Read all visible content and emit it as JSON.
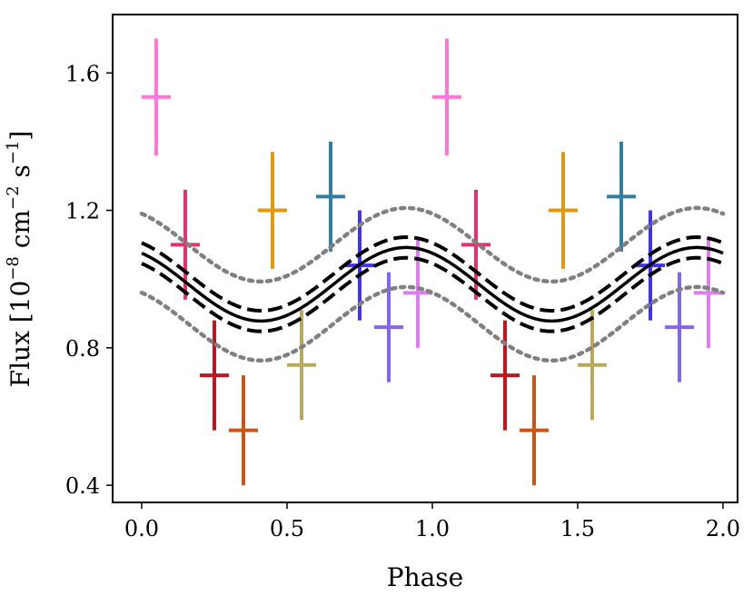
{
  "chart_data": {
    "type": "scatter",
    "title": "",
    "xlabel": "Phase",
    "ylabel": {
      "prefix": "Flux [10",
      "exp1": "−8",
      "mid": " cm",
      "exp2": "−2",
      "mid2": " s",
      "exp3": "−1",
      "suffix": "]"
    },
    "xlim": [
      -0.1,
      2.05
    ],
    "ylim": [
      0.35,
      1.77
    ],
    "x_ticks": [
      {
        "value": 0.0,
        "label": "0.0"
      },
      {
        "value": 0.5,
        "label": "0.5"
      },
      {
        "value": 1.0,
        "label": "1.0"
      },
      {
        "value": 1.5,
        "label": "1.5"
      },
      {
        "value": 2.0,
        "label": "2.0"
      }
    ],
    "y_ticks": [
      {
        "value": 0.4,
        "label": "0.4"
      },
      {
        "value": 0.8,
        "label": "0.8"
      },
      {
        "value": 1.2,
        "label": "1.2"
      },
      {
        "value": 1.6,
        "label": "1.6"
      }
    ],
    "points": [
      {
        "x": 0.05,
        "y": 1.53,
        "err": 0.17,
        "color": "#ff77d6"
      },
      {
        "x": 0.15,
        "y": 1.1,
        "err": 0.16,
        "color": "#e2336f"
      },
      {
        "x": 0.25,
        "y": 0.72,
        "err": 0.16,
        "color": "#c0161c"
      },
      {
        "x": 0.35,
        "y": 0.56,
        "err": 0.16,
        "color": "#cc5415"
      },
      {
        "x": 0.45,
        "y": 1.2,
        "err": 0.17,
        "color": "#dd9a0e"
      },
      {
        "x": 0.55,
        "y": 0.75,
        "err": 0.16,
        "color": "#b8a95e"
      },
      {
        "x": 0.65,
        "y": 1.24,
        "err": 0.16,
        "color": "#307fa0"
      },
      {
        "x": 0.75,
        "y": 1.04,
        "err": 0.16,
        "color": "#3e33ee"
      },
      {
        "x": 0.85,
        "y": 0.86,
        "err": 0.16,
        "color": "#8266f0"
      },
      {
        "x": 0.95,
        "y": 0.96,
        "err": 0.16,
        "color": "#dc7ef0"
      },
      {
        "x": 1.05,
        "y": 1.53,
        "err": 0.17,
        "color": "#ff77d6"
      },
      {
        "x": 1.15,
        "y": 1.1,
        "err": 0.16,
        "color": "#e2336f"
      },
      {
        "x": 1.25,
        "y": 0.72,
        "err": 0.16,
        "color": "#c0161c"
      },
      {
        "x": 1.35,
        "y": 0.56,
        "err": 0.16,
        "color": "#cc5415"
      },
      {
        "x": 1.45,
        "y": 1.2,
        "err": 0.17,
        "color": "#dd9a0e"
      },
      {
        "x": 1.55,
        "y": 0.75,
        "err": 0.16,
        "color": "#b8a95e"
      },
      {
        "x": 1.65,
        "y": 1.24,
        "err": 0.16,
        "color": "#307fa0"
      },
      {
        "x": 1.75,
        "y": 1.04,
        "err": 0.16,
        "color": "#3e33ee"
      },
      {
        "x": 1.85,
        "y": 0.86,
        "err": 0.16,
        "color": "#8266f0"
      },
      {
        "x": 1.95,
        "y": 0.96,
        "err": 0.16,
        "color": "#dc7ef0"
      }
    ],
    "x_error_halfwidth": 0.05,
    "model": {
      "description": "sinusoid fit",
      "mean": 0.985,
      "amplitude": 0.107,
      "peak_phase": 0.91,
      "period": 1.0,
      "x_range": [
        0.0,
        2.0
      ],
      "inner_band_offset": 0.03,
      "outer_band_offset": 0.115,
      "fit_color": "#000000",
      "outer_band_color": "#808080"
    }
  }
}
